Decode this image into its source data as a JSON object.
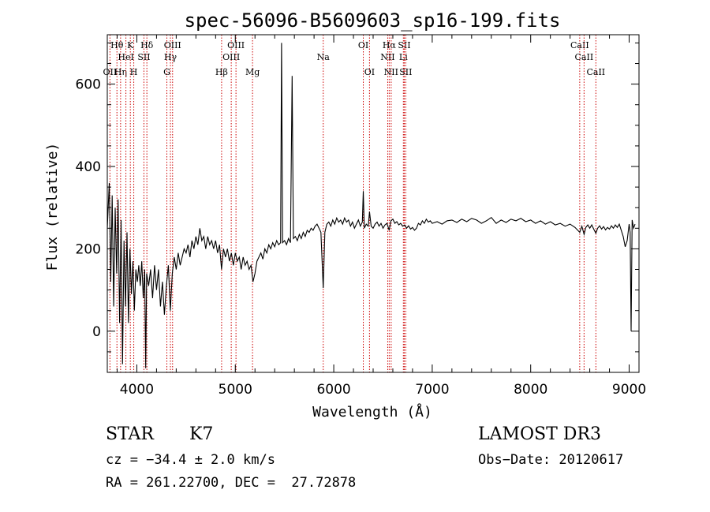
{
  "chart_data": {
    "type": "line",
    "title": "spec-56096-B5609603_sp16-199.fits",
    "xlabel": "Wavelength (Å)",
    "ylabel": "Flux (relative)",
    "xlim": [
      3700,
      9100
    ],
    "ylim": [
      -100,
      720
    ],
    "x_ticks": [
      4000,
      5000,
      6000,
      7000,
      8000,
      9000
    ],
    "y_ticks": [
      0,
      200,
      400,
      600
    ],
    "grid": false,
    "series": [
      {
        "name": "flux",
        "color": "#000000",
        "points": [
          [
            3700,
            250
          ],
          [
            3720,
            360
          ],
          [
            3735,
            120
          ],
          [
            3750,
            330
          ],
          [
            3765,
            60
          ],
          [
            3780,
            300
          ],
          [
            3795,
            140
          ],
          [
            3810,
            320
          ],
          [
            3825,
            20
          ],
          [
            3840,
            270
          ],
          [
            3855,
            -80
          ],
          [
            3870,
            220
          ],
          [
            3885,
            60
          ],
          [
            3900,
            240
          ],
          [
            3915,
            20
          ],
          [
            3930,
            200
          ],
          [
            3945,
            90
          ],
          [
            3960,
            170
          ],
          [
            3975,
            50
          ],
          [
            3990,
            150
          ],
          [
            4005,
            120
          ],
          [
            4020,
            160
          ],
          [
            4035,
            110
          ],
          [
            4050,
            170
          ],
          [
            4065,
            80
          ],
          [
            4080,
            150
          ],
          [
            4090,
            -90
          ],
          [
            4100,
            140
          ],
          [
            4120,
            110
          ],
          [
            4140,
            150
          ],
          [
            4160,
            80
          ],
          [
            4180,
            160
          ],
          [
            4200,
            100
          ],
          [
            4220,
            150
          ],
          [
            4240,
            60
          ],
          [
            4260,
            120
          ],
          [
            4280,
            40
          ],
          [
            4300,
            110
          ],
          [
            4320,
            160
          ],
          [
            4340,
            50
          ],
          [
            4360,
            140
          ],
          [
            4380,
            180
          ],
          [
            4400,
            150
          ],
          [
            4420,
            190
          ],
          [
            4440,
            160
          ],
          [
            4460,
            180
          ],
          [
            4480,
            200
          ],
          [
            4500,
            190
          ],
          [
            4520,
            210
          ],
          [
            4540,
            180
          ],
          [
            4560,
            220
          ],
          [
            4580,
            200
          ],
          [
            4600,
            230
          ],
          [
            4620,
            210
          ],
          [
            4640,
            250
          ],
          [
            4660,
            220
          ],
          [
            4680,
            230
          ],
          [
            4700,
            200
          ],
          [
            4720,
            230
          ],
          [
            4740,
            210
          ],
          [
            4760,
            220
          ],
          [
            4780,
            200
          ],
          [
            4800,
            220
          ],
          [
            4820,
            190
          ],
          [
            4840,
            210
          ],
          [
            4860,
            150
          ],
          [
            4880,
            200
          ],
          [
            4900,
            180
          ],
          [
            4920,
            200
          ],
          [
            4940,
            170
          ],
          [
            4960,
            190
          ],
          [
            4980,
            160
          ],
          [
            5000,
            190
          ],
          [
            5020,
            170
          ],
          [
            5040,
            180
          ],
          [
            5060,
            150
          ],
          [
            5080,
            180
          ],
          [
            5100,
            160
          ],
          [
            5120,
            170
          ],
          [
            5140,
            150
          ],
          [
            5160,
            160
          ],
          [
            5180,
            120
          ],
          [
            5200,
            140
          ],
          [
            5220,
            170
          ],
          [
            5240,
            180
          ],
          [
            5260,
            190
          ],
          [
            5280,
            175
          ],
          [
            5300,
            200
          ],
          [
            5320,
            190
          ],
          [
            5340,
            210
          ],
          [
            5360,
            200
          ],
          [
            5380,
            215
          ],
          [
            5400,
            205
          ],
          [
            5420,
            220
          ],
          [
            5440,
            210
          ],
          [
            5460,
            215
          ],
          [
            5470,
            700
          ],
          [
            5480,
            215
          ],
          [
            5500,
            220
          ],
          [
            5520,
            210
          ],
          [
            5540,
            225
          ],
          [
            5560,
            215
          ],
          [
            5577,
            620
          ],
          [
            5590,
            225
          ],
          [
            5610,
            230
          ],
          [
            5630,
            220
          ],
          [
            5650,
            235
          ],
          [
            5670,
            225
          ],
          [
            5690,
            240
          ],
          [
            5710,
            230
          ],
          [
            5730,
            245
          ],
          [
            5750,
            240
          ],
          [
            5770,
            250
          ],
          [
            5790,
            245
          ],
          [
            5810,
            255
          ],
          [
            5830,
            260
          ],
          [
            5850,
            250
          ],
          [
            5870,
            240
          ],
          [
            5893,
            105
          ],
          [
            5910,
            240
          ],
          [
            5930,
            260
          ],
          [
            5950,
            265
          ],
          [
            5970,
            255
          ],
          [
            5990,
            270
          ],
          [
            6010,
            260
          ],
          [
            6030,
            275
          ],
          [
            6050,
            265
          ],
          [
            6070,
            270
          ],
          [
            6090,
            260
          ],
          [
            6110,
            275
          ],
          [
            6130,
            265
          ],
          [
            6150,
            270
          ],
          [
            6170,
            255
          ],
          [
            6190,
            265
          ],
          [
            6210,
            250
          ],
          [
            6230,
            260
          ],
          [
            6250,
            270
          ],
          [
            6270,
            255
          ],
          [
            6290,
            265
          ],
          [
            6300,
            340
          ],
          [
            6310,
            250
          ],
          [
            6330,
            260
          ],
          [
            6350,
            255
          ],
          [
            6363,
            290
          ],
          [
            6380,
            255
          ],
          [
            6400,
            250
          ],
          [
            6420,
            260
          ],
          [
            6440,
            265
          ],
          [
            6460,
            255
          ],
          [
            6480,
            262
          ],
          [
            6500,
            250
          ],
          [
            6520,
            258
          ],
          [
            6540,
            262
          ],
          [
            6563,
            245
          ],
          [
            6580,
            268
          ],
          [
            6600,
            272
          ],
          [
            6620,
            262
          ],
          [
            6640,
            266
          ],
          [
            6660,
            258
          ],
          [
            6680,
            262
          ],
          [
            6700,
            255
          ],
          [
            6720,
            258
          ],
          [
            6740,
            250
          ],
          [
            6760,
            256
          ],
          [
            6780,
            248
          ],
          [
            6800,
            252
          ],
          [
            6820,
            245
          ],
          [
            6840,
            250
          ],
          [
            6860,
            262
          ],
          [
            6880,
            258
          ],
          [
            6900,
            268
          ],
          [
            6920,
            262
          ],
          [
            6940,
            272
          ],
          [
            6960,
            265
          ],
          [
            6980,
            268
          ],
          [
            7000,
            262
          ],
          [
            7050,
            266
          ],
          [
            7100,
            260
          ],
          [
            7150,
            268
          ],
          [
            7200,
            270
          ],
          [
            7250,
            264
          ],
          [
            7300,
            272
          ],
          [
            7350,
            266
          ],
          [
            7400,
            274
          ],
          [
            7450,
            270
          ],
          [
            7500,
            262
          ],
          [
            7550,
            268
          ],
          [
            7600,
            276
          ],
          [
            7650,
            262
          ],
          [
            7700,
            270
          ],
          [
            7750,
            264
          ],
          [
            7800,
            272
          ],
          [
            7850,
            268
          ],
          [
            7900,
            274
          ],
          [
            7950,
            266
          ],
          [
            8000,
            270
          ],
          [
            8050,
            262
          ],
          [
            8100,
            268
          ],
          [
            8150,
            260
          ],
          [
            8200,
            266
          ],
          [
            8250,
            258
          ],
          [
            8300,
            262
          ],
          [
            8350,
            255
          ],
          [
            8400,
            260
          ],
          [
            8450,
            252
          ],
          [
            8498,
            240
          ],
          [
            8520,
            255
          ],
          [
            8542,
            235
          ],
          [
            8560,
            252
          ],
          [
            8580,
            258
          ],
          [
            8600,
            250
          ],
          [
            8620,
            258
          ],
          [
            8640,
            248
          ],
          [
            8662,
            238
          ],
          [
            8680,
            250
          ],
          [
            8700,
            256
          ],
          [
            8720,
            248
          ],
          [
            8740,
            254
          ],
          [
            8760,
            246
          ],
          [
            8780,
            252
          ],
          [
            8800,
            248
          ],
          [
            8820,
            256
          ],
          [
            8840,
            250
          ],
          [
            8860,
            258
          ],
          [
            8880,
            252
          ],
          [
            8900,
            260
          ],
          [
            8920,
            245
          ],
          [
            8940,
            230
          ],
          [
            8960,
            205
          ],
          [
            8980,
            220
          ],
          [
            9000,
            260
          ],
          [
            9010,
            240
          ],
          [
            9020,
            0
          ],
          [
            9030,
            270
          ],
          [
            9045,
            250
          ],
          [
            9060,
            260
          ]
        ]
      }
    ],
    "line_markers": [
      {
        "label": "OII",
        "wavelength": 3727,
        "row": 3
      },
      {
        "label": "Hθ",
        "wavelength": 3798,
        "row": 1
      },
      {
        "label": "Hη",
        "wavelength": 3835,
        "row": 3
      },
      {
        "label": "HeI",
        "wavelength": 3889,
        "row": 2
      },
      {
        "label": "K",
        "wavelength": 3934,
        "row": 1
      },
      {
        "label": "H",
        "wavelength": 3969,
        "row": 3
      },
      {
        "label": "SII",
        "wavelength": 4072,
        "row": 2
      },
      {
        "label": "Hδ",
        "wavelength": 4102,
        "row": 1
      },
      {
        "label": "G",
        "wavelength": 4305,
        "row": 3
      },
      {
        "label": "Hγ",
        "wavelength": 4341,
        "row": 2
      },
      {
        "label": "OIII",
        "wavelength": 4363,
        "row": 1
      },
      {
        "label": "Hβ",
        "wavelength": 4861,
        "row": 3
      },
      {
        "label": "OIII",
        "wavelength": 4959,
        "row": 2
      },
      {
        "label": "OIII",
        "wavelength": 5007,
        "row": 1
      },
      {
        "label": "Mg",
        "wavelength": 5175,
        "row": 3
      },
      {
        "label": "Na",
        "wavelength": 5893,
        "row": 2
      },
      {
        "label": "OI",
        "wavelength": 6300,
        "row": 1
      },
      {
        "label": "OI",
        "wavelength": 6363,
        "row": 3
      },
      {
        "label": "NII",
        "wavelength": 6548,
        "row": 2
      },
      {
        "label": "Hα",
        "wavelength": 6563,
        "row": 1
      },
      {
        "label": "NII",
        "wavelength": 6583,
        "row": 3
      },
      {
        "label": "Li",
        "wavelength": 6707,
        "row": 2
      },
      {
        "label": "SII",
        "wavelength": 6716,
        "row": 1
      },
      {
        "label": "SII",
        "wavelength": 6731,
        "row": 3
      },
      {
        "label": "CaII",
        "wavelength": 8498,
        "row": 1
      },
      {
        "label": "CaII",
        "wavelength": 8542,
        "row": 2
      },
      {
        "label": "CaII",
        "wavelength": 8662,
        "row": 3
      }
    ],
    "marker_color": "#cc0000"
  },
  "info": {
    "object_class": "STAR",
    "subclass": "K7",
    "survey": "LAMOST DR3",
    "cz": "cz = −34.4 ± 2.0 km/s",
    "obs_date": "Obs−Date: 20120617",
    "radec": "RA = 261.22700, DEC =  27.72878"
  }
}
